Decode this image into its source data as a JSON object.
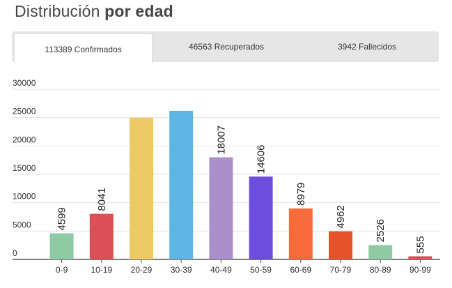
{
  "header": {
    "title_part1": "Distribución",
    "title_part2": "por edad"
  },
  "tabs": [
    {
      "label": "113389 Confirmados",
      "active": true
    },
    {
      "label": "46563 Recuperados",
      "active": false
    },
    {
      "label": "3942 Fallecidos",
      "active": false
    }
  ],
  "chart_data": {
    "type": "bar",
    "categories": [
      "0-9",
      "10-19",
      "20-29",
      "30-39",
      "40-49",
      "50-59",
      "60-69",
      "70-79",
      "80-89",
      "90-99"
    ],
    "values": [
      4599,
      8041,
      25000,
      26200,
      18007,
      14606,
      8979,
      4962,
      2526,
      555
    ],
    "data_labels": [
      "4599",
      "8041",
      "",
      "",
      "18007",
      "14606",
      "8979",
      "4962",
      "2526",
      "555"
    ],
    "colors": [
      "#8ecba5",
      "#dc4f57",
      "#efc965",
      "#5fb5e3",
      "#ab8fcb",
      "#6b4fdc",
      "#fb6a3a",
      "#e6532a",
      "#8ecba5",
      "#dc4f57"
    ],
    "y_ticks": [
      "0",
      "5000",
      "10000",
      "15000",
      "20000",
      "25000",
      "30000"
    ],
    "ylim": [
      0,
      30000
    ],
    "grid": true,
    "title": "",
    "xlabel": "",
    "ylabel": ""
  }
}
